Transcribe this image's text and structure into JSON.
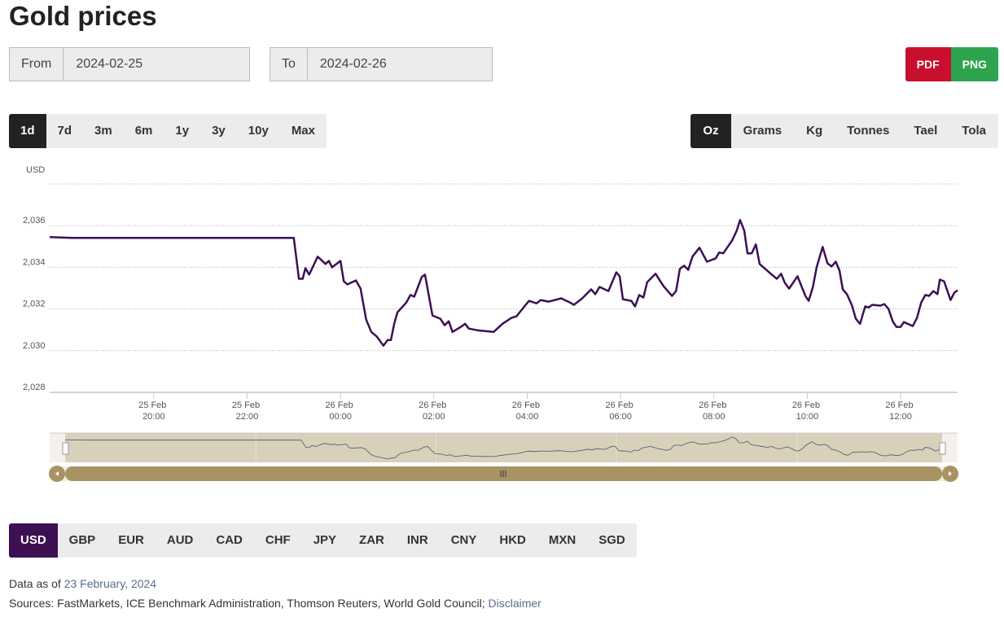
{
  "header": {
    "title": "Gold prices"
  },
  "date_range": {
    "from_label": "From",
    "from_value": "2024-02-25",
    "to_label": "To",
    "to_value": "2024-02-26"
  },
  "export_buttons": [
    {
      "label": "PDF",
      "color": "#c8102e"
    },
    {
      "label": "PNG",
      "color": "#2ea44f"
    }
  ],
  "range_buttons": [
    {
      "label": "1d",
      "active": true
    },
    {
      "label": "7d",
      "active": false
    },
    {
      "label": "3m",
      "active": false
    },
    {
      "label": "6m",
      "active": false
    },
    {
      "label": "1y",
      "active": false
    },
    {
      "label": "3y",
      "active": false
    },
    {
      "label": "10y",
      "active": false
    },
    {
      "label": "Max",
      "active": false
    }
  ],
  "unit_buttons": [
    {
      "label": "Oz",
      "active": true
    },
    {
      "label": "Grams",
      "active": false
    },
    {
      "label": "Kg",
      "active": false
    },
    {
      "label": "Tonnes",
      "active": false
    },
    {
      "label": "Tael",
      "active": false
    },
    {
      "label": "Tola",
      "active": false
    }
  ],
  "chart_data": {
    "type": "line",
    "y_axis_label": "USD",
    "color": "#3c1053",
    "x": [
      17.77,
      18.24,
      23.0,
      23.11,
      23.19,
      23.25,
      23.33,
      23.51,
      23.68,
      23.75,
      23.82,
      24.0,
      24.07,
      24.15,
      24.33,
      24.43,
      24.55,
      24.66,
      24.78,
      24.92,
      25.01,
      25.08,
      25.15,
      25.22,
      25.41,
      25.5,
      25.58,
      25.74,
      25.81,
      25.97,
      26.14,
      26.23,
      26.32,
      26.4,
      26.58,
      26.67,
      26.75,
      26.93,
      27.1,
      27.28,
      27.47,
      27.66,
      27.77,
      27.94,
      28.04,
      28.2,
      28.29,
      28.46,
      28.73,
      28.92,
      29.0,
      29.18,
      29.37,
      29.46,
      29.55,
      29.74,
      29.91,
      29.98,
      30.05,
      30.23,
      30.31,
      30.4,
      30.49,
      30.57,
      30.75,
      30.92,
      31.1,
      31.19,
      31.27,
      31.36,
      31.45,
      31.54,
      31.69,
      31.85,
      32.04,
      32.11,
      32.2,
      32.39,
      32.49,
      32.56,
      32.65,
      32.72,
      32.81,
      32.9,
      32.98,
      33.26,
      33.35,
      33.44,
      33.52,
      33.61,
      33.79,
      33.96,
      34.03,
      34.12,
      34.2,
      34.33,
      34.43,
      34.52,
      34.61,
      34.69,
      34.76,
      34.85,
      34.96,
      35.04,
      35.13,
      35.24,
      35.32,
      35.39,
      35.57,
      35.65,
      35.74,
      35.83,
      35.91,
      36.0,
      36.07,
      36.26,
      36.35,
      36.44,
      36.53,
      36.61,
      36.7,
      36.79,
      36.84,
      36.93,
      37.07,
      37.15,
      37.22
    ],
    "values": [
      2035.45,
      2035.41,
      2035.41,
      2033.45,
      2033.45,
      2033.96,
      2033.65,
      2034.51,
      2034.16,
      2034.31,
      2034.0,
      2034.31,
      2033.33,
      2033.18,
      2033.37,
      2032.98,
      2031.49,
      2030.9,
      2030.67,
      2030.24,
      2030.51,
      2030.51,
      2031.29,
      2031.84,
      2032.31,
      2032.67,
      2032.59,
      2033.53,
      2033.65,
      2031.69,
      2031.53,
      2031.22,
      2031.41,
      2030.9,
      2031.14,
      2031.29,
      2031.06,
      2030.98,
      2030.94,
      2030.9,
      2031.29,
      2031.57,
      2031.65,
      2032.12,
      2032.39,
      2032.27,
      2032.43,
      2032.35,
      2032.51,
      2032.31,
      2032.2,
      2032.51,
      2032.94,
      2032.71,
      2033.06,
      2032.86,
      2033.76,
      2033.57,
      2032.47,
      2032.39,
      2032.12,
      2032.67,
      2032.55,
      2033.29,
      2033.69,
      2033.1,
      2032.63,
      2032.86,
      2033.92,
      2034.08,
      2033.88,
      2034.51,
      2034.94,
      2034.27,
      2034.43,
      2034.71,
      2034.67,
      2035.29,
      2035.76,
      2036.27,
      2035.76,
      2034.67,
      2034.67,
      2035.1,
      2034.16,
      2033.61,
      2033.45,
      2033.69,
      2033.25,
      2032.98,
      2033.57,
      2032.63,
      2032.39,
      2033.06,
      2034.0,
      2034.98,
      2034.2,
      2034.04,
      2034.27,
      2033.84,
      2032.94,
      2032.71,
      2032.16,
      2031.53,
      2031.29,
      2032.12,
      2032.08,
      2032.2,
      2032.16,
      2032.24,
      2032.0,
      2031.41,
      2031.14,
      2031.14,
      2031.37,
      2031.18,
      2031.57,
      2032.31,
      2032.67,
      2032.63,
      2032.86,
      2032.71,
      2033.41,
      2033.33,
      2032.43,
      2032.78,
      2032.9
    ],
    "xlim": [
      17.77,
      37.22
    ],
    "xticks": [
      {
        "value": 20,
        "label": "25 Feb 20:00"
      },
      {
        "value": 22,
        "label": "25 Feb 22:00"
      },
      {
        "value": 24,
        "label": "26 Feb 00:00"
      },
      {
        "value": 26,
        "label": "26 Feb 02:00"
      },
      {
        "value": 28,
        "label": "26 Feb 04:00"
      },
      {
        "value": 30,
        "label": "26 Feb 06:00"
      },
      {
        "value": 32,
        "label": "26 Feb 08:00"
      },
      {
        "value": 34,
        "label": "26 Feb 10:00"
      },
      {
        "value": 36,
        "label": "26 Feb 12:00"
      }
    ],
    "ylim": [
      2028,
      2038
    ],
    "yticks": [
      {
        "value": 2028,
        "label": "2,028"
      },
      {
        "value": 2030,
        "label": "2,030"
      },
      {
        "value": 2032,
        "label": "2,032"
      },
      {
        "value": 2034,
        "label": "2,034"
      },
      {
        "value": 2036,
        "label": "2,036"
      }
    ],
    "grid": true
  },
  "currency_buttons": [
    {
      "label": "USD",
      "active": true
    },
    {
      "label": "GBP",
      "active": false
    },
    {
      "label": "EUR",
      "active": false
    },
    {
      "label": "AUD",
      "active": false
    },
    {
      "label": "CAD",
      "active": false
    },
    {
      "label": "CHF",
      "active": false
    },
    {
      "label": "JPY",
      "active": false
    },
    {
      "label": "ZAR",
      "active": false
    },
    {
      "label": "INR",
      "active": false
    },
    {
      "label": "CNY",
      "active": false
    },
    {
      "label": "HKD",
      "active": false
    },
    {
      "label": "MXN",
      "active": false
    },
    {
      "label": "SGD",
      "active": false
    }
  ],
  "footer": {
    "data_as_of_label": "Data as of",
    "data_as_of_date": "23 February, 2024",
    "sources": "Sources: FastMarkets, ICE Benchmark Administration, Thomson Reuters, World Gold Council;",
    "disclaimer": "Disclaimer"
  }
}
